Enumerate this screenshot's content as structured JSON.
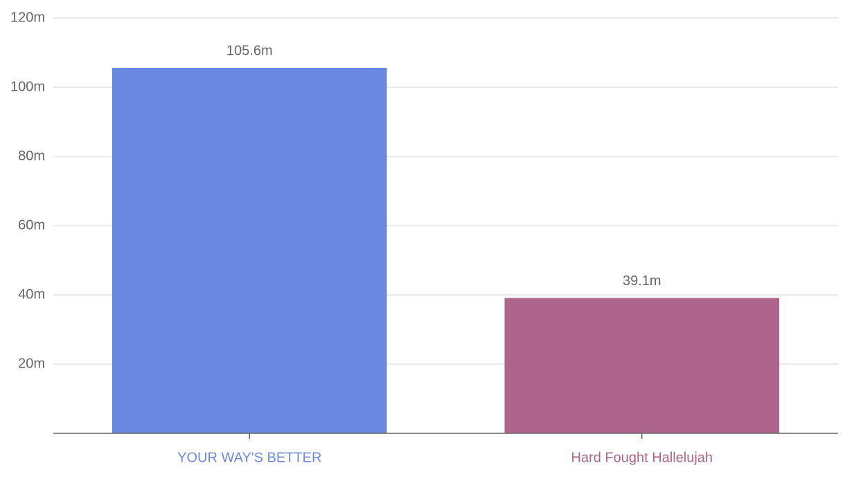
{
  "chart_data": {
    "type": "bar",
    "categories": [
      "YOUR WAY'S BETTER",
      "Hard Fought Hallelujah"
    ],
    "values": [
      105.6,
      39.1
    ],
    "value_labels": [
      "105.6m",
      "39.1m"
    ],
    "colors": [
      "#6c89e2",
      "#ae658c"
    ],
    "ylim": [
      0,
      120
    ],
    "yticks": [
      {
        "value": 20,
        "label": "20m"
      },
      {
        "value": 40,
        "label": "40m"
      },
      {
        "value": 60,
        "label": "60m"
      },
      {
        "value": 80,
        "label": "80m"
      },
      {
        "value": 100,
        "label": "100m"
      },
      {
        "value": 120,
        "label": "120m"
      }
    ],
    "grid": true
  }
}
